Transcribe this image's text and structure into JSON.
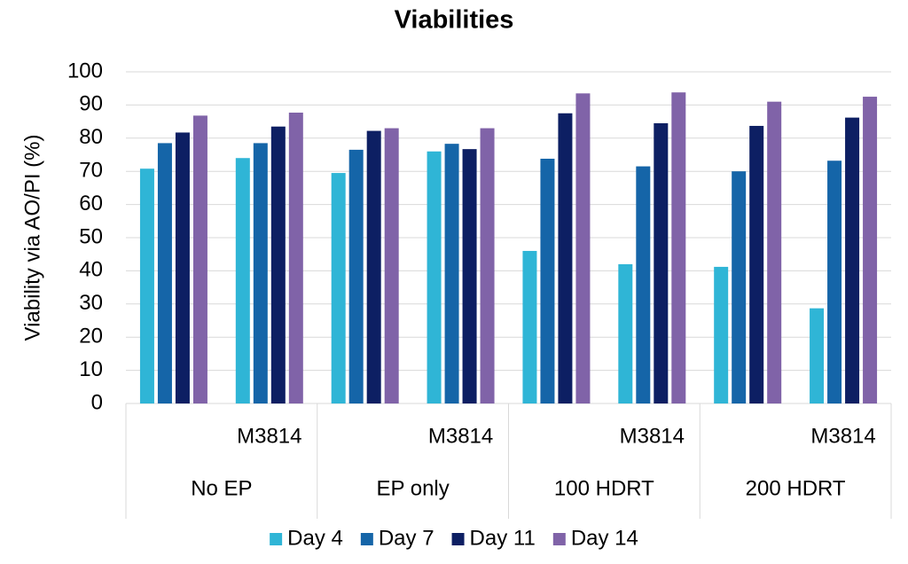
{
  "chart_data": {
    "type": "bar",
    "title": "Viabilities",
    "y_label": "Viability via AO/PI (%)",
    "categories": [
      null,
      "M3814",
      null,
      "M3814",
      null,
      "M3814",
      null,
      "M3814"
    ],
    "groups": [
      "No EP",
      "EP only",
      "100 HDRT",
      "200 HDRT"
    ],
    "series": [
      {
        "name": "Day 4",
        "color": "#2fb5d6",
        "values": [
          70.8,
          74,
          69.5,
          76,
          46,
          42,
          41.2,
          28.7
        ]
      },
      {
        "name": "Day 7",
        "color": "#1565a8",
        "values": [
          78.5,
          78.5,
          76.5,
          78.3,
          73.8,
          71.5,
          70,
          73.2
        ]
      },
      {
        "name": "Day 11",
        "color": "#0d1f63",
        "values": [
          81.7,
          83.5,
          82.2,
          76.7,
          87.5,
          84.5,
          83.7,
          86.2
        ]
      },
      {
        "name": "Day 14",
        "color": "#8063a8",
        "values": [
          86.8,
          87.7,
          83,
          83,
          93.5,
          93.8,
          91,
          92.5
        ]
      }
    ],
    "ylim": [
      0,
      100
    ],
    "yticks": [
      0,
      10,
      20,
      30,
      40,
      50,
      60,
      70,
      80,
      90,
      100
    ],
    "grid": true,
    "legend": "bottom"
  }
}
